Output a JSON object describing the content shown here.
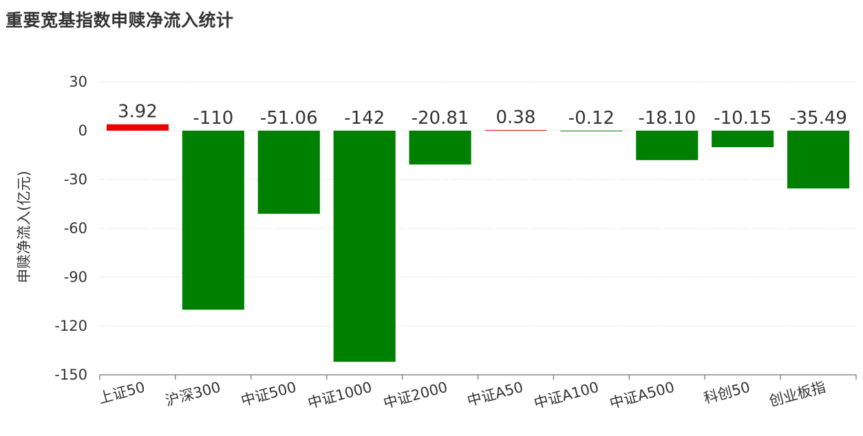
{
  "chart_data": {
    "type": "bar",
    "title": "重要宽基指数申赎净流入统计",
    "xlabel": "",
    "ylabel": "申赎净流入(亿元)",
    "ylim": [
      -150,
      30
    ],
    "yticks": [
      30,
      0,
      -30,
      -60,
      -90,
      -120,
      -150
    ],
    "ytick_labels": [
      "30",
      "0",
      "-30",
      "-60",
      "-90",
      "-120",
      "-150"
    ],
    "grid": true,
    "legend": "none",
    "categories": [
      "上证50",
      "沪深300",
      "中证500",
      "中证1000",
      "中证2000",
      "中证A50",
      "中证A100",
      "中证A500",
      "科创50",
      "创业板指"
    ],
    "values": [
      3.92,
      -110,
      -51.06,
      -142,
      -20.81,
      0.38,
      -0.12,
      -18.1,
      -10.15,
      -35.49
    ],
    "data_labels": [
      "3.92",
      "-110",
      "-51.06",
      "-142",
      "-20.81",
      "0.38",
      "-0.12",
      "-18.10",
      "-10.15",
      "-35.49"
    ],
    "colors": {
      "positive": "#ee0000",
      "negative": "#008000",
      "grid": "#d9d9d9",
      "axis": "#888888",
      "text": "#333333"
    }
  }
}
